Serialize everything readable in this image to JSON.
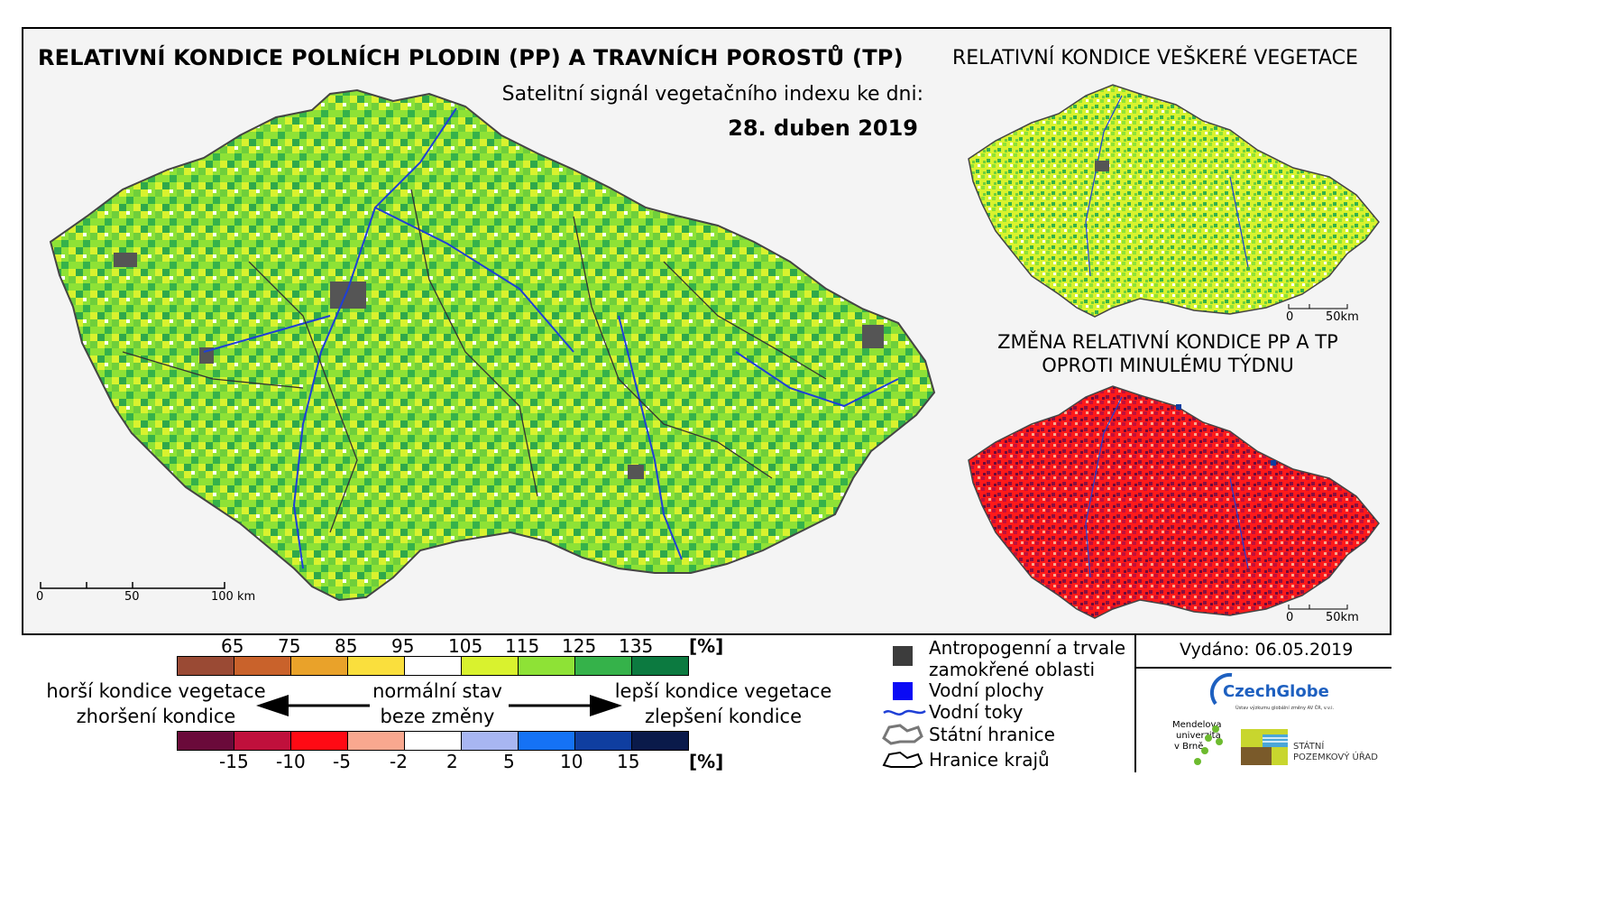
{
  "titles": {
    "main": "RELATIVNÍ KONDICE POLNÍCH PLODIN (PP) A TRAVNÍCH POROSTŮ (TP)",
    "right": "RELATIVNÍ KONDICE VEŠKERÉ VEGETACE",
    "subtitle": "Satelitní signál vegetačního indexu ke dni:",
    "date": "28. duben 2019",
    "change_line1": "ZMĚNA RELATIVNÍ KONDICE PP A TP",
    "change_line2": "OPROTI MINULÉMU TÝDNU"
  },
  "scalebars": {
    "main": {
      "l0": "0",
      "l1": "50",
      "l2": "100 km"
    },
    "small_top": {
      "l0": "0",
      "l1": "50km"
    },
    "small_bottom": {
      "l0": "0",
      "l1": "50km"
    }
  },
  "legend": {
    "top_ticks": [
      "65",
      "75",
      "85",
      "95",
      "105",
      "115",
      "125",
      "135"
    ],
    "top_unit": "[%]",
    "top_colors": [
      "#9a4a34",
      "#c9622b",
      "#e9a22a",
      "#fadf3d",
      "#ffffff",
      "#d9f22e",
      "#8ee236",
      "#35b24a",
      "#0c7a40"
    ],
    "bottom_ticks": [
      "-15",
      "-10",
      "-5",
      "-2",
      "2",
      "5",
      "10",
      "15"
    ],
    "bottom_unit": "[%]",
    "bottom_colors": [
      "#6a0a3a",
      "#c0103c",
      "#ff0a14",
      "#f9a88f",
      "#ffffff",
      "#a8b6f2",
      "#1572f5",
      "#0f3ea0",
      "#0a1a4a"
    ],
    "worse_line1": "horší kondice vegetace",
    "worse_line2": "zhoršení kondice",
    "normal_line1": "normální stav",
    "normal_line2": "beze změny",
    "better_line1": "lepší kondice vegetace",
    "better_line2": "zlepšení kondice"
  },
  "symbols": {
    "anthropogenic_line1": "Antropogenní a trvale",
    "anthropogenic_line2": "zamokřené oblasti",
    "water_areas": "Vodní plochy",
    "water_flows": "Vodní toky",
    "state_border": "Státní hranice",
    "region_border": "Hranice krajů"
  },
  "issued": "Vydáno: 06.05.2019",
  "logos": {
    "czechglobe": "CzechGlobe",
    "czechglobe_sub": "Ústav výzkumu globální změny AV ČR, v.v.i.",
    "mendel_line1": "Mendelova",
    "mendel_line2": "univerzita",
    "mendel_line3": "v Brně",
    "spu_line1": "STÁTNÍ",
    "spu_line2": "POZEMKOVÝ ÚŘAD"
  },
  "colors": {
    "green_main": "#6fcf3b",
    "yellow_green": "#d9f22e",
    "dark_green": "#2fa84a",
    "red_change": "#ff1a1a",
    "dark_red": "#8a1040",
    "urban": "#555555",
    "river": "#1e3fd6"
  }
}
